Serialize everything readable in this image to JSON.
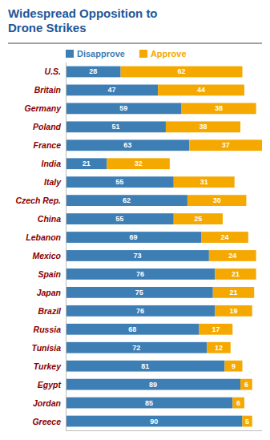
{
  "chart_data": {
    "type": "bar",
    "orientation": "horizontal",
    "stacked": true,
    "title": "Widespread Opposition to\nDrone Strikes",
    "categories": [
      "U.S.",
      "Britain",
      "Germany",
      "Poland",
      "France",
      "India",
      "Italy",
      "Czech Rep.",
      "China",
      "Lebanon",
      "Mexico",
      "Spain",
      "Japan",
      "Brazil",
      "Russia",
      "Tunisia",
      "Turkey",
      "Egypt",
      "Jordan",
      "Greece"
    ],
    "series": [
      {
        "name": "Disapprove",
        "color": "#3d7eb5",
        "values": [
          28,
          47,
          59,
          51,
          63,
          21,
          55,
          62,
          55,
          69,
          73,
          76,
          75,
          76,
          68,
          72,
          81,
          89,
          85,
          90
        ]
      },
      {
        "name": "Approve",
        "color": "#f5a800",
        "values": [
          62,
          44,
          38,
          38,
          37,
          32,
          31,
          30,
          25,
          24,
          24,
          21,
          21,
          19,
          17,
          12,
          9,
          6,
          6,
          5
        ]
      }
    ],
    "xlim": [
      0,
      100
    ],
    "data_labels": true,
    "tick_labels": "y",
    "legend": "top",
    "grid": false
  }
}
